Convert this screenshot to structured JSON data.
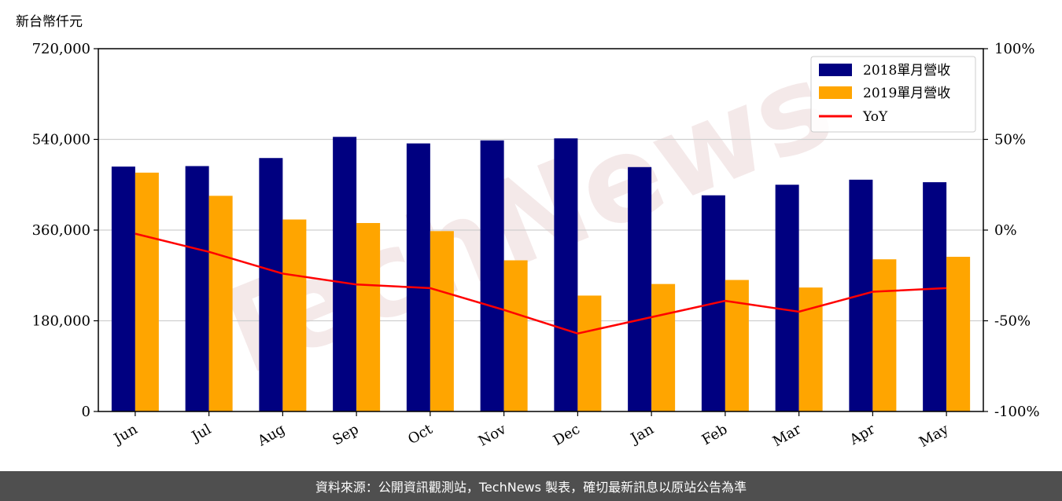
{
  "unit_label": "新台幣仟元",
  "footer_text": "資料來源：公開資訊觀測站，TechNews 製表，確切最新訊息以原站公告為準",
  "watermark": "TechNews",
  "colors": {
    "series_2018": "#000080",
    "series_2019": "#FFA500",
    "yoy": "#FF0000",
    "footer_bg": "#4f4f4f"
  },
  "chart_data": {
    "type": "bar",
    "categories": [
      "Jun",
      "Jul",
      "Aug",
      "Sep",
      "Oct",
      "Nov",
      "Dec",
      "Jan",
      "Feb",
      "Mar",
      "Apr",
      "May"
    ],
    "series": [
      {
        "name": "2018單月營收",
        "type": "bar",
        "axis": "left",
        "values": [
          486000,
          487000,
          503000,
          545000,
          532000,
          538000,
          542000,
          485000,
          429000,
          450000,
          460000,
          455000
        ]
      },
      {
        "name": "2019單月營收",
        "type": "bar",
        "axis": "left",
        "values": [
          474000,
          428000,
          381000,
          374000,
          358000,
          300000,
          230000,
          253000,
          261000,
          246000,
          302000,
          307000
        ]
      },
      {
        "name": "YoY",
        "type": "line",
        "axis": "right",
        "values": [
          -2,
          -12,
          -24,
          -30,
          -32,
          -44,
          -57,
          -48,
          -39,
          -45,
          -34,
          -32
        ]
      }
    ],
    "y_left": {
      "lim": [
        0,
        720000
      ],
      "ticks": [
        0,
        180000,
        360000,
        540000,
        720000
      ],
      "tick_labels": [
        "0",
        "180,000",
        "360,000",
        "540,000",
        "720,000"
      ]
    },
    "y_right": {
      "lim": [
        -100,
        100
      ],
      "ticks": [
        -100,
        -50,
        0,
        50,
        100
      ],
      "tick_labels": [
        "-100%",
        "-50%",
        "0%",
        "50%",
        "100%"
      ]
    },
    "grid": "horizontal",
    "legend_position": "top-right"
  }
}
